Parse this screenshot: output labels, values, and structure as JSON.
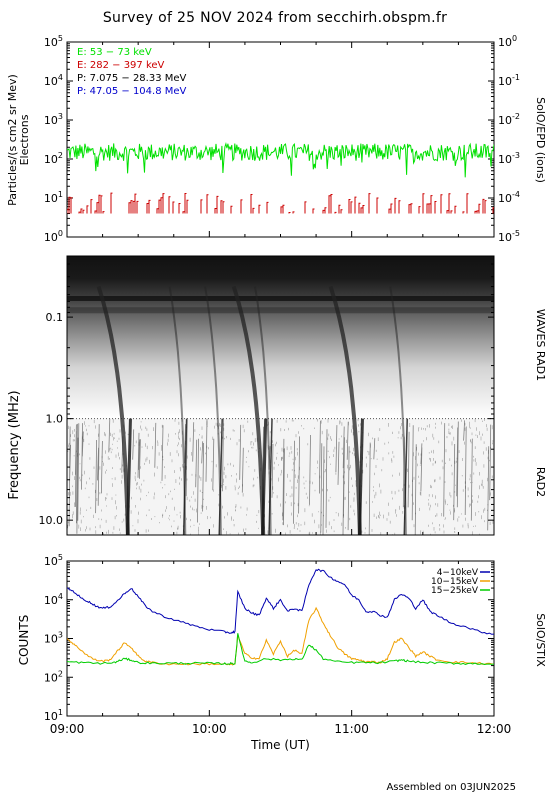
{
  "title": "Survey of 25 NOV 2024 from secchirh.obspm.fr",
  "footer": "Assembled on 03JUN2025",
  "colors": {
    "electrons_low": "#00e000",
    "electrons_high": "#cc0000",
    "protons_low": "#000000",
    "protons_high": "#0000cc",
    "stix_4_10": "#0000b0",
    "stix_10_15": "#f0a000",
    "stix_15_25": "#00cc00"
  },
  "chart_data": [
    {
      "type": "line",
      "panel": "SolO/EPD",
      "ylabel": "Particles/(s cm2 sr Mev)",
      "ylabel2": "Electrons",
      "right_label": "SolO/EPD (ions)",
      "yscale": "log",
      "ylim": [
        1,
        100000
      ],
      "y_ticks": [
        "10^0",
        "10^1",
        "10^2",
        "10^3",
        "10^4",
        "10^5"
      ],
      "y2scale": "log",
      "y2lim": [
        1e-05,
        1
      ],
      "y2_ticks": [
        "10^-5",
        "10^-4",
        "10^-3",
        "10^-2",
        "10^-1",
        "10^0"
      ],
      "xlim_hours": [
        9,
        12
      ],
      "legend": [
        {
          "label": "E: 53 − 73 keV",
          "color": "#00e000"
        },
        {
          "label": "E: 282 − 397 keV",
          "color": "#cc0000"
        },
        {
          "label": "P: 7.075 − 28.33 MeV",
          "color": "#000000"
        },
        {
          "label": "P: 47.05 − 104.8 MeV",
          "color": "#0000cc"
        }
      ],
      "series": [
        {
          "name": "E: 53 − 73 keV",
          "typical_value": 150,
          "range": [
            30,
            400
          ],
          "style": "continuous"
        },
        {
          "name": "E: 282 − 397 keV",
          "typical_value": 6,
          "range": [
            4,
            20
          ],
          "style": "sparse"
        }
      ]
    },
    {
      "type": "heatmap",
      "panel": "WAVES",
      "ylabel": "Frequency (MHz)",
      "right_label_top": "WAVES RAD1",
      "right_label_bottom": "RAD2",
      "yscale": "log",
      "yaxis_inverted": true,
      "ylim": [
        0.025,
        14.0
      ],
      "y_ticks": [
        "0.1",
        "1.0",
        "10.0"
      ],
      "xlim_hours": [
        9,
        12
      ],
      "type_iii_bursts_start_hours": [
        9.2,
        9.7,
        9.95,
        10.15,
        10.3,
        10.83,
        11.25
      ]
    },
    {
      "type": "line",
      "panel": "SolO/STIX",
      "ylabel": "COUNTS",
      "right_label": "SolO/STIX",
      "xlabel": "Time (UT)",
      "yscale": "log",
      "ylim": [
        10,
        100000
      ],
      "y_ticks": [
        "10^1",
        "10^2",
        "10^3",
        "10^4",
        "10^5"
      ],
      "x_ticks": [
        "09:00",
        "10:00",
        "11:00",
        "12:00"
      ],
      "xlim_hours": [
        9,
        12
      ],
      "series": [
        {
          "name": "4−10keV",
          "color": "#0000b0",
          "x": [
            9.0,
            9.05,
            9.1,
            9.15,
            9.2,
            9.25,
            9.3,
            9.35,
            9.4,
            9.45,
            9.5,
            9.55,
            9.6,
            9.7,
            9.8,
            9.9,
            10.0,
            10.1,
            10.15,
            10.18,
            10.2,
            10.25,
            10.3,
            10.35,
            10.4,
            10.45,
            10.5,
            10.55,
            10.6,
            10.65,
            10.7,
            10.75,
            10.8,
            10.85,
            10.9,
            10.95,
            11.0,
            11.05,
            11.1,
            11.15,
            11.2,
            11.25,
            11.3,
            11.35,
            11.4,
            11.45,
            11.5,
            11.55,
            11.6,
            11.7,
            11.8,
            11.9,
            12.0
          ],
          "y": [
            20000,
            16000,
            11000,
            9000,
            7000,
            6000,
            6500,
            9000,
            14000,
            20000,
            12000,
            7000,
            5000,
            3500,
            2700,
            2100,
            1700,
            1500,
            1400,
            1500,
            16000,
            6000,
            4500,
            4000,
            11000,
            6000,
            10000,
            5000,
            6000,
            5000,
            25000,
            60000,
            55000,
            38000,
            30000,
            25000,
            13000,
            10000,
            5000,
            5000,
            4000,
            3500,
            10000,
            14000,
            11000,
            6000,
            10000,
            5000,
            4000,
            2500,
            2000,
            1500,
            1300
          ]
        },
        {
          "name": "10−15keV",
          "color": "#f0a000",
          "x": [
            9.0,
            9.05,
            9.1,
            9.15,
            9.2,
            9.25,
            9.3,
            9.35,
            9.4,
            9.45,
            9.5,
            9.55,
            9.6,
            9.7,
            9.8,
            9.9,
            10.0,
            10.1,
            10.15,
            10.18,
            10.2,
            10.25,
            10.3,
            10.35,
            10.4,
            10.45,
            10.5,
            10.55,
            10.6,
            10.65,
            10.7,
            10.75,
            10.8,
            10.85,
            10.9,
            10.95,
            11.0,
            11.05,
            11.1,
            11.15,
            11.2,
            11.25,
            11.3,
            11.35,
            11.4,
            11.45,
            11.5,
            11.55,
            11.6,
            11.7,
            11.8,
            11.9,
            12.0
          ],
          "y": [
            1000,
            700,
            500,
            350,
            280,
            260,
            280,
            450,
            750,
            600,
            350,
            260,
            240,
            220,
            220,
            220,
            220,
            220,
            210,
            220,
            1200,
            400,
            320,
            300,
            900,
            400,
            850,
            350,
            500,
            400,
            3000,
            6000,
            2500,
            1200,
            600,
            400,
            300,
            280,
            250,
            250,
            240,
            300,
            800,
            1000,
            600,
            350,
            450,
            350,
            280,
            250,
            240,
            230,
            220
          ]
        },
        {
          "name": "15−25keV",
          "color": "#00cc00",
          "x": [
            9.0,
            9.1,
            9.2,
            9.3,
            9.35,
            9.4,
            9.45,
            9.5,
            9.6,
            9.7,
            9.8,
            9.9,
            10.0,
            10.1,
            10.15,
            10.18,
            10.2,
            10.25,
            10.3,
            10.4,
            10.5,
            10.6,
            10.65,
            10.7,
            10.75,
            10.8,
            10.9,
            11.0,
            11.1,
            11.2,
            11.3,
            11.35,
            11.4,
            11.5,
            11.6,
            11.7,
            11.8,
            11.9,
            12.0
          ],
          "y": [
            250,
            240,
            230,
            230,
            250,
            300,
            280,
            240,
            230,
            230,
            230,
            230,
            230,
            225,
            225,
            225,
            1300,
            260,
            240,
            300,
            280,
            300,
            280,
            700,
            500,
            300,
            250,
            240,
            240,
            235,
            260,
            280,
            260,
            240,
            235,
            230,
            225,
            225,
            220
          ]
        }
      ],
      "legend": [
        {
          "label": "4−10keV",
          "color": "#0000b0"
        },
        {
          "label": "10−15keV",
          "color": "#f0a000"
        },
        {
          "label": "15−25keV",
          "color": "#00cc00"
        }
      ]
    }
  ]
}
